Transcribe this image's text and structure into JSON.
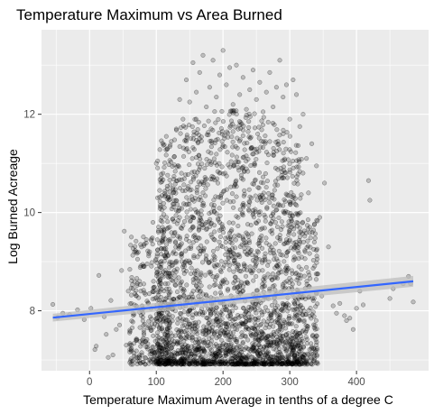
{
  "chart_data": {
    "type": "scatter",
    "title": "Temperature Maximum vs Area Burned",
    "xlabel": "Temperature Maximum Average in tenths of a degree C",
    "ylabel": "Log Burned Acreage",
    "xlim": [
      -72,
      508
    ],
    "ylim": [
      6.78,
      13.72
    ],
    "x_ticks": [
      0,
      100,
      200,
      300,
      400
    ],
    "x_tick_labels": [
      "0",
      "100",
      "200",
      "300",
      "400"
    ],
    "y_ticks": [
      8,
      10,
      12
    ],
    "y_tick_labels": [
      "8",
      "10",
      "12"
    ],
    "grid": true,
    "legend": "none",
    "point_alpha": 0.2,
    "y_floor": 6.91,
    "bulk_x_range": [
      100,
      320
    ],
    "points": [
      [
        -55,
        8.13
      ],
      [
        -48,
        7.86
      ],
      [
        -40,
        7.95
      ],
      [
        -30,
        7.92
      ],
      [
        -18,
        8.02
      ],
      [
        -8,
        7.82
      ],
      [
        2,
        8.05
      ],
      [
        8,
        7.21
      ],
      [
        10,
        7.28
      ],
      [
        14,
        8.72
      ],
      [
        22,
        7.88
      ],
      [
        25,
        7.52
      ],
      [
        28,
        7.05
      ],
      [
        32,
        8.21
      ],
      [
        35,
        7.1
      ],
      [
        40,
        7.62
      ],
      [
        45,
        7.71
      ],
      [
        48,
        8.82
      ],
      [
        52,
        9.62
      ],
      [
        55,
        7.3
      ],
      [
        58,
        8.4
      ],
      [
        60,
        7.55
      ],
      [
        63,
        8.61
      ],
      [
        65,
        7.95
      ],
      [
        68,
        8.35
      ],
      [
        70,
        7.4
      ],
      [
        72,
        9.05
      ],
      [
        75,
        8.6
      ],
      [
        78,
        9.3
      ],
      [
        80,
        7.95
      ],
      [
        82,
        8.9
      ],
      [
        85,
        9.45
      ],
      [
        88,
        8.15
      ],
      [
        90,
        9.2
      ],
      [
        92,
        7.6
      ],
      [
        95,
        9.8
      ],
      [
        98,
        8.25
      ],
      [
        100,
        11.0
      ],
      [
        102,
        11.05
      ],
      [
        103,
        9.6
      ],
      [
        105,
        10.45
      ],
      [
        108,
        9.9
      ],
      [
        110,
        10.8
      ],
      [
        112,
        10.1
      ],
      [
        115,
        11.55
      ],
      [
        118,
        10.3
      ],
      [
        120,
        9.7
      ],
      [
        130,
        11.7
      ],
      [
        135,
        12.3
      ],
      [
        140,
        11.9
      ],
      [
        145,
        12.7
      ],
      [
        150,
        12.25
      ],
      [
        155,
        13.05
      ],
      [
        160,
        12.45
      ],
      [
        165,
        12.85
      ],
      [
        170,
        13.2
      ],
      [
        175,
        12.15
      ],
      [
        180,
        12.55
      ],
      [
        185,
        13.1
      ],
      [
        190,
        12.35
      ],
      [
        195,
        12.8
      ],
      [
        200,
        13.3
      ],
      [
        205,
        12.6
      ],
      [
        210,
        12.95
      ],
      [
        215,
        12.2
      ],
      [
        220,
        13.0
      ],
      [
        225,
        12.4
      ],
      [
        230,
        12.75
      ],
      [
        235,
        12.1
      ],
      [
        240,
        12.5
      ],
      [
        245,
        12.9
      ],
      [
        250,
        12.3
      ],
      [
        255,
        12.65
      ],
      [
        260,
        12.05
      ],
      [
        265,
        12.45
      ],
      [
        270,
        12.85
      ],
      [
        275,
        12.15
      ],
      [
        280,
        12.55
      ],
      [
        285,
        13.1
      ],
      [
        290,
        12.35
      ],
      [
        295,
        12.6
      ],
      [
        300,
        11.9
      ],
      [
        305,
        12.7
      ],
      [
        310,
        12.4
      ],
      [
        315,
        11.75
      ],
      [
        320,
        12.0
      ],
      [
        325,
        11.1
      ],
      [
        328,
        10.4
      ],
      [
        330,
        9.7
      ],
      [
        333,
        11.4
      ],
      [
        336,
        9.25
      ],
      [
        340,
        10.95
      ],
      [
        342,
        8.75
      ],
      [
        345,
        9.9
      ],
      [
        348,
        8.3
      ],
      [
        352,
        10.6
      ],
      [
        358,
        9.3
      ],
      [
        365,
        8.1
      ],
      [
        370,
        7.95
      ],
      [
        375,
        8.15
      ],
      [
        382,
        7.9
      ],
      [
        385,
        7.8
      ],
      [
        390,
        7.85
      ],
      [
        395,
        7.62
      ],
      [
        400,
        8.05
      ],
      [
        405,
        8.4
      ],
      [
        410,
        8.12
      ],
      [
        418,
        10.65
      ],
      [
        420,
        10.25
      ],
      [
        450,
        8.25
      ],
      [
        455,
        8.45
      ],
      [
        470,
        8.55
      ],
      [
        478,
        8.7
      ],
      [
        481,
        8.55
      ],
      [
        485,
        8.18
      ]
    ],
    "fit_line": {
      "x": [
        -55,
        485
      ],
      "y": [
        7.86,
        8.6
      ],
      "color": "#3366ff",
      "band_color": "#bdbdbd",
      "band_halfwidth": [
        0.08,
        0.11
      ]
    },
    "panel_color": "#ebebeb",
    "grid_color": "#ffffff",
    "point_color": "#000000"
  }
}
